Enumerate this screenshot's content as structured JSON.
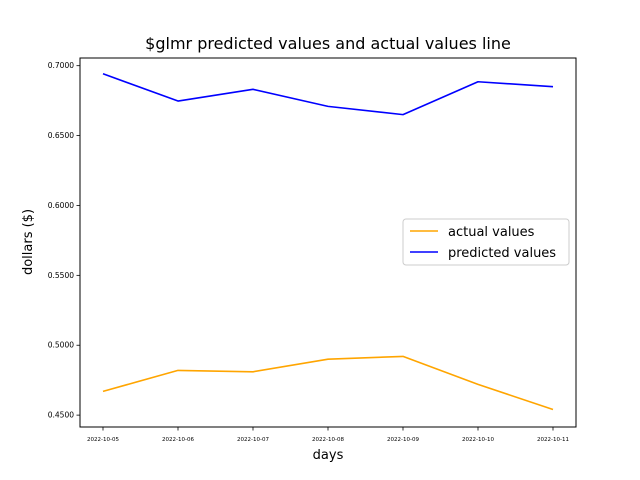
{
  "chart_data": {
    "type": "line",
    "title": "$glmr predicted values and actual values line",
    "xlabel": "days",
    "ylabel": "dollars ($)",
    "x": [
      "2022-10-05",
      "2022-10-06",
      "2022-10-07",
      "2022-10-08",
      "2022-10-09",
      "2022-10-10",
      "2022-10-11"
    ],
    "series": [
      {
        "name": "actual values",
        "color": "#ffa500",
        "values": [
          0.467,
          0.482,
          0.481,
          0.49,
          0.492,
          0.472,
          0.454
        ]
      },
      {
        "name": "predicted values",
        "color": "#0000ff",
        "values": [
          0.6942,
          0.6747,
          0.6831,
          0.6709,
          0.665,
          0.6885,
          0.685
        ]
      }
    ],
    "yticks": [
      "0.4500",
      "0.5000",
      "0.5500",
      "0.6000",
      "0.6500",
      "0.7000"
    ],
    "ylim": [
      0.4415,
      0.7055
    ],
    "grid": false,
    "legend_position": "center-right"
  }
}
